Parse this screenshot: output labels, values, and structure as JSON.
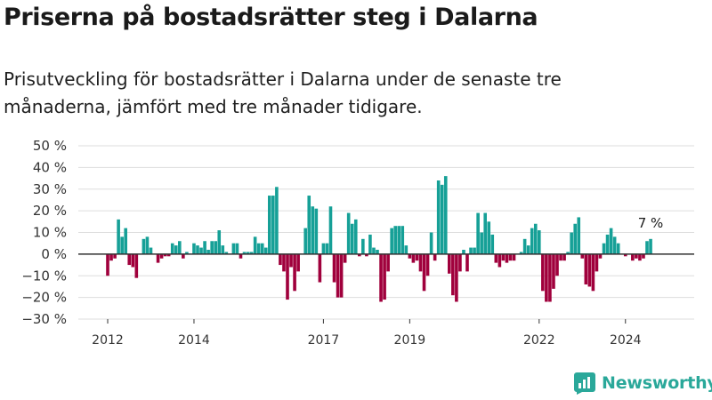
{
  "header": {
    "title": "Priserna på bostadsrätter steg i Dalarna",
    "subtitle": "Prisutveckling för bostadsrätter i Dalarna under de senaste tre månaderna, jämfört med tre månader tidigare."
  },
  "brand": {
    "name": "Newsworthy"
  },
  "colors": {
    "positive": "#16a097",
    "negative": "#a0003c",
    "grid": "#dddddd",
    "axis": "#333333"
  },
  "chart_data": {
    "type": "bar",
    "title": "",
    "xlabel": "",
    "ylabel": "",
    "ylim": [
      -30,
      50
    ],
    "y_ticks": [
      "50 %",
      "40 %",
      "30 %",
      "20 %",
      "10 %",
      "0 %",
      "−10 %",
      "−20 %",
      "−30 %"
    ],
    "y_tick_values": [
      50,
      40,
      30,
      20,
      10,
      0,
      -10,
      -20,
      -30
    ],
    "x_ticks": [
      "2012",
      "2014",
      "2017",
      "2019",
      "2022",
      "2024"
    ],
    "x_tick_dates": [
      "2012-01",
      "2014-01",
      "2017-01",
      "2019-01",
      "2022-01",
      "2024-01"
    ],
    "grid": true,
    "annotation": "7 %",
    "start_month": "2012-01",
    "series": [
      {
        "values": [
          -10,
          -3,
          -2,
          16,
          8,
          12,
          -5,
          -6,
          -11,
          0,
          7,
          8,
          3,
          0,
          -4,
          -2,
          -1,
          -1,
          5,
          4,
          6,
          -2,
          1,
          0,
          5,
          4,
          3,
          6,
          2,
          6,
          6,
          11,
          4,
          1,
          0,
          5,
          5,
          -2,
          1,
          1,
          1,
          8,
          5,
          5,
          3,
          27,
          27,
          31,
          -5,
          -8,
          -21,
          -6,
          -17,
          -8,
          0,
          12,
          27,
          22,
          21,
          -13,
          5,
          5,
          22,
          -13,
          -20,
          -20,
          -4,
          19,
          14,
          16,
          -1,
          7,
          -1,
          9,
          3,
          2,
          -22,
          -21,
          -8,
          12,
          13,
          13,
          13,
          4,
          -2,
          -4,
          -3,
          -8,
          -17,
          -10,
          10,
          -3,
          34,
          32,
          36,
          -9,
          -19,
          -22,
          -8,
          2,
          -8,
          3,
          3,
          19,
          10,
          19,
          15,
          9,
          -4,
          -6,
          -3,
          -4,
          -3,
          -3,
          0,
          1,
          7,
          4,
          12,
          14,
          11,
          -17,
          -22,
          -22,
          -16,
          -10,
          -3,
          -3,
          1,
          10,
          14,
          17,
          -2,
          -14,
          -15,
          -17,
          -8,
          -2,
          5,
          9,
          12,
          8,
          5,
          0,
          -1,
          0,
          -3,
          -2,
          -3,
          -2,
          6,
          7
        ]
      }
    ]
  }
}
